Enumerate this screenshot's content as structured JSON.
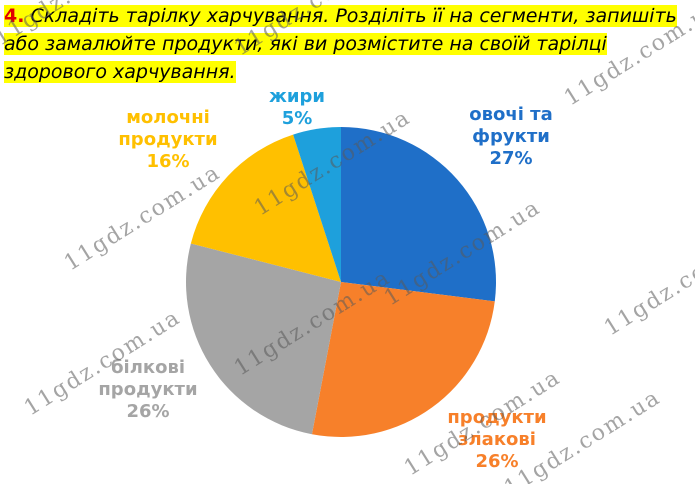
{
  "task": {
    "number": "4.",
    "text": "Складіть тарілку харчування. Розділіть її на сегменти, запишіть або замалюйте продукти, які ви розмістите на своїй тарілці здорового харчування."
  },
  "watermark": "11gdz.com.ua",
  "chart_data": {
    "type": "pie",
    "categories": [
      "овочі та фрукти",
      "продукти злакові",
      "білкові продукти",
      "молочні продукти",
      "жири"
    ],
    "values": [
      27,
      26,
      26,
      16,
      5
    ],
    "value_labels": [
      "27%",
      "26%",
      "26%",
      "16%",
      "5%"
    ],
    "colors": [
      "#1f6fc8",
      "#f7802a",
      "#a5a5a5",
      "#ffc000",
      "#1ea0dc"
    ]
  }
}
